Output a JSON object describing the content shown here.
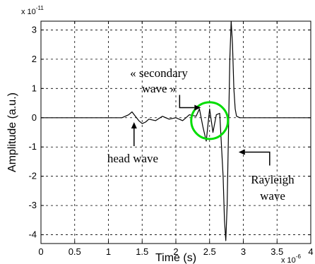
{
  "chart_data": {
    "type": "line",
    "xlabel": "Time (s)",
    "ylabel": "Amplitude (a.u.)",
    "x_multiplier": {
      "base": "x 10",
      "exponent": "-6"
    },
    "y_multiplier": {
      "base": "x 10",
      "exponent": "-11"
    },
    "xlim": [
      0,
      4
    ],
    "ylim": [
      -4.3,
      3.3
    ],
    "x_ticks": [
      "0",
      "0.5",
      "1",
      "1.5",
      "2",
      "2.5",
      "3",
      "3.5",
      "4"
    ],
    "y_ticks": [
      "3",
      "2",
      "1",
      "0",
      "-1",
      "-2",
      "-3",
      "-4"
    ],
    "grid": true,
    "series": [
      {
        "x": [
          0.0,
          0.5,
          1.0,
          1.2,
          1.3,
          1.35,
          1.4,
          1.45,
          1.5,
          1.55,
          1.6,
          1.7,
          1.8,
          1.9,
          2.0,
          2.1,
          2.2,
          2.3,
          2.35,
          2.4,
          2.45,
          2.5,
          2.55,
          2.6,
          2.65,
          2.7,
          2.72,
          2.74,
          2.76,
          2.78,
          2.8,
          2.82,
          2.84,
          2.86,
          2.88,
          2.9,
          2.95,
          3.0,
          3.2,
          3.5,
          4.0
        ],
        "y": [
          0.0,
          0.0,
          0.0,
          0.0,
          0.1,
          0.2,
          0.05,
          -0.1,
          -0.2,
          -0.15,
          -0.05,
          -0.1,
          0.05,
          -0.05,
          0.0,
          -0.1,
          0.1,
          0.05,
          0.3,
          -0.3,
          -0.8,
          0.3,
          -0.5,
          0.1,
          0.15,
          -2.0,
          -3.5,
          -4.2,
          -3.0,
          -0.5,
          2.0,
          3.3,
          2.5,
          1.0,
          0.3,
          0.05,
          0.0,
          0.0,
          0.0,
          0.0,
          0.0
        ]
      }
    ],
    "annotations": [
      {
        "lines": [
          "« secondary",
          "wave »"
        ],
        "target": [
          2.37,
          0.15
        ]
      },
      {
        "lines": [
          "head wave"
        ],
        "target": [
          1.38,
          -0.15
        ]
      },
      {
        "lines": [
          "Rayleigh",
          "wave"
        ],
        "target": [
          2.93,
          -1.2
        ]
      }
    ],
    "highlight": {
      "shape": "circle",
      "center": [
        2.5,
        -0.1
      ],
      "color": "#00dd00"
    },
    "colors": {
      "line": "#000000",
      "grid": "#000000",
      "highlight": "#00dd00"
    }
  }
}
